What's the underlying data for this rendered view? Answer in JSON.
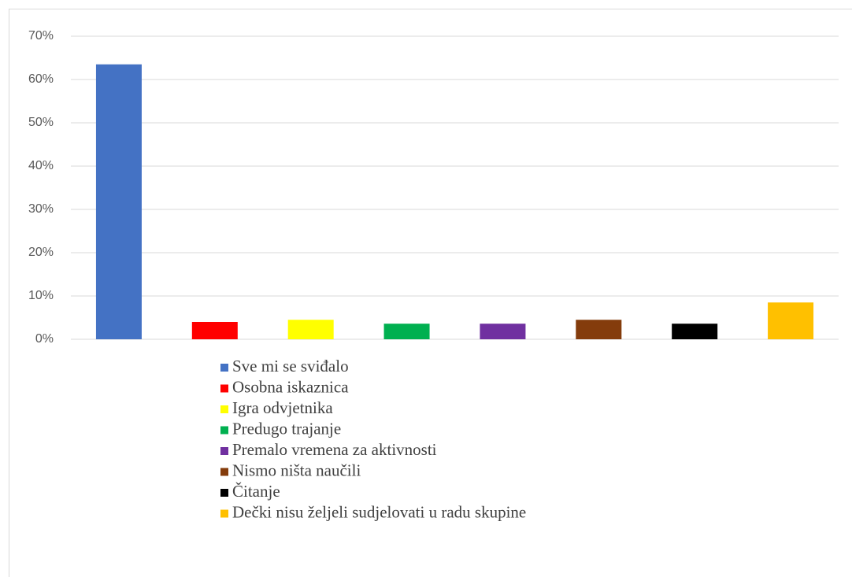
{
  "chart_data": {
    "type": "bar",
    "categories": [
      "Sve mi se sviđalo",
      "Osobna iskaznica",
      "Igra odvjetnika",
      "Predugo trajanje",
      "Premalo vremena za aktivnosti",
      "Nismo ništa naučili",
      "Čitanje",
      "Dečki nisu željeli sudjelovati u radu skupine"
    ],
    "values": [
      63.5,
      4.0,
      4.5,
      3.6,
      3.6,
      4.5,
      3.6,
      8.5
    ],
    "colors": [
      "#4472c4",
      "#ff0000",
      "#ffff00",
      "#00b050",
      "#7030a0",
      "#843c0c",
      "#000000",
      "#ffc000"
    ],
    "ylim": [
      0,
      70
    ],
    "yticks": [
      {
        "value": 0,
        "label": "0%"
      },
      {
        "value": 10,
        "label": "10%"
      },
      {
        "value": 20,
        "label": "20%"
      },
      {
        "value": 30,
        "label": "30%"
      },
      {
        "value": 40,
        "label": "40%"
      },
      {
        "value": 50,
        "label": "50%"
      },
      {
        "value": 60,
        "label": "60%"
      },
      {
        "value": 70,
        "label": "70%"
      }
    ],
    "grid": true,
    "legend": "bottom"
  }
}
